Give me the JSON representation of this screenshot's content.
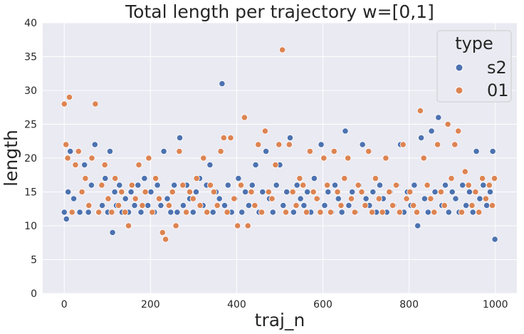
{
  "chart_data": {
    "type": "scatter",
    "title": "Total length per trajectory w=[0,1]",
    "xlabel": "traj_n",
    "ylabel": "length",
    "xlim": [
      -50,
      1050
    ],
    "ylim": [
      0,
      40
    ],
    "x_ticks": [
      "0",
      "200",
      "400",
      "600",
      "800",
      "1000"
    ],
    "y_ticks": [
      "0",
      "5",
      "10",
      "15",
      "20",
      "25",
      "30",
      "35",
      "40"
    ],
    "grid": true,
    "legend": {
      "title": "type",
      "placement": "top-right"
    },
    "series": [
      {
        "name": "s2",
        "color": "#4c72b0",
        "x": [
          0,
          5,
          9,
          14,
          22,
          36,
          47,
          56,
          63,
          71,
          79,
          88,
          95,
          101,
          106,
          112,
          117,
          121,
          128,
          134,
          142,
          149,
          155,
          163,
          171,
          178,
          186,
          194,
          201,
          209,
          216,
          224,
          231,
          239,
          247,
          255,
          262,
          268,
          276,
          284,
          291,
          299,
          306,
          314,
          322,
          330,
          338,
          345,
          352,
          360,
          366,
          372,
          380,
          388,
          396,
          404,
          412,
          420,
          428,
          436,
          444,
          452,
          460,
          468,
          476,
          484,
          492,
          500,
          508,
          516,
          524,
          532,
          540,
          548,
          556,
          564,
          572,
          580,
          588,
          596,
          604,
          612,
          620,
          628,
          636,
          644,
          652,
          660,
          668,
          676,
          684,
          692,
          700,
          708,
          716,
          724,
          732,
          740,
          748,
          756,
          764,
          772,
          780,
          788,
          796,
          804,
          812,
          820,
          828,
          836,
          844,
          852,
          860,
          868,
          876,
          884,
          892,
          900,
          908,
          916,
          924,
          932,
          940,
          948,
          956,
          964,
          972,
          980,
          988,
          994,
          999
        ],
        "y": [
          12,
          11,
          15,
          21,
          14,
          12,
          19,
          12,
          16,
          22,
          12,
          13,
          17,
          12,
          21,
          9,
          15,
          13,
          16,
          12,
          14,
          12,
          15,
          13,
          16,
          12,
          17,
          13,
          15,
          12,
          16,
          13,
          21,
          14,
          12,
          16,
          12,
          23,
          13,
          16,
          14,
          12,
          15,
          17,
          13,
          16,
          19,
          12,
          15,
          14,
          31,
          13,
          16,
          12,
          14,
          17,
          12,
          15,
          13,
          16,
          19,
          12,
          15,
          21,
          14,
          12,
          16,
          19,
          13,
          15,
          23,
          12,
          16,
          14,
          13,
          15,
          12,
          17,
          14,
          22,
          13,
          15,
          12,
          16,
          14,
          12,
          24,
          13,
          15,
          12,
          16,
          22,
          14,
          13,
          15,
          12,
          16,
          14,
          12,
          15,
          13,
          16,
          22,
          12,
          15,
          13,
          16,
          10,
          23,
          14,
          12,
          24,
          15,
          26,
          13,
          16,
          12,
          15,
          14,
          12,
          16,
          13,
          15,
          12,
          21,
          14,
          16,
          13,
          15,
          21,
          8
        ]
      },
      {
        "name": "01",
        "color": "#dd8452",
        "x": [
          0,
          4,
          8,
          12,
          18,
          26,
          33,
          41,
          49,
          57,
          64,
          72,
          80,
          87,
          94,
          102,
          110,
          118,
          126,
          133,
          141,
          149,
          157,
          165,
          173,
          181,
          188,
          196,
          204,
          212,
          220,
          228,
          235,
          243,
          251,
          259,
          267,
          275,
          283,
          291,
          299,
          307,
          315,
          323,
          331,
          339,
          347,
          355,
          363,
          370,
          378,
          386,
          394,
          402,
          410,
          418,
          426,
          434,
          442,
          450,
          458,
          466,
          474,
          482,
          490,
          498,
          506,
          514,
          522,
          530,
          538,
          546,
          554,
          562,
          570,
          578,
          586,
          594,
          602,
          610,
          618,
          626,
          634,
          642,
          650,
          658,
          666,
          674,
          682,
          690,
          698,
          706,
          714,
          722,
          730,
          738,
          746,
          754,
          762,
          770,
          778,
          786,
          794,
          802,
          810,
          818,
          826,
          834,
          842,
          850,
          858,
          866,
          874,
          882,
          890,
          898,
          906,
          914,
          922,
          930,
          938,
          946,
          954,
          962,
          970,
          978,
          986,
          993,
          998
        ],
        "y": [
          28,
          22,
          20,
          29,
          12,
          19,
          21,
          15,
          17,
          13,
          20,
          28,
          12,
          16,
          19,
          14,
          12,
          17,
          13,
          15,
          12,
          10,
          16,
          14,
          19,
          13,
          15,
          20,
          12,
          17,
          14,
          9,
          8,
          13,
          15,
          10,
          21,
          16,
          12,
          15,
          14,
          17,
          13,
          20,
          12,
          16,
          15,
          13,
          21,
          23,
          12,
          23,
          14,
          10,
          16,
          26,
          10,
          15,
          13,
          22,
          12,
          24,
          15,
          14,
          19,
          22,
          36,
          12,
          22,
          15,
          13,
          17,
          16,
          12,
          21,
          15,
          14,
          12,
          20,
          16,
          12,
          21,
          15,
          13,
          17,
          20,
          14,
          12,
          16,
          15,
          13,
          21,
          12,
          17,
          14,
          12,
          20,
          15,
          13,
          16,
          12,
          22,
          14,
          15,
          13,
          12,
          27,
          20,
          16,
          14,
          12,
          22,
          15,
          13,
          25,
          17,
          22,
          24,
          12,
          18,
          16,
          13,
          15,
          12,
          17,
          14,
          16,
          13,
          17
        ]
      }
    ]
  }
}
